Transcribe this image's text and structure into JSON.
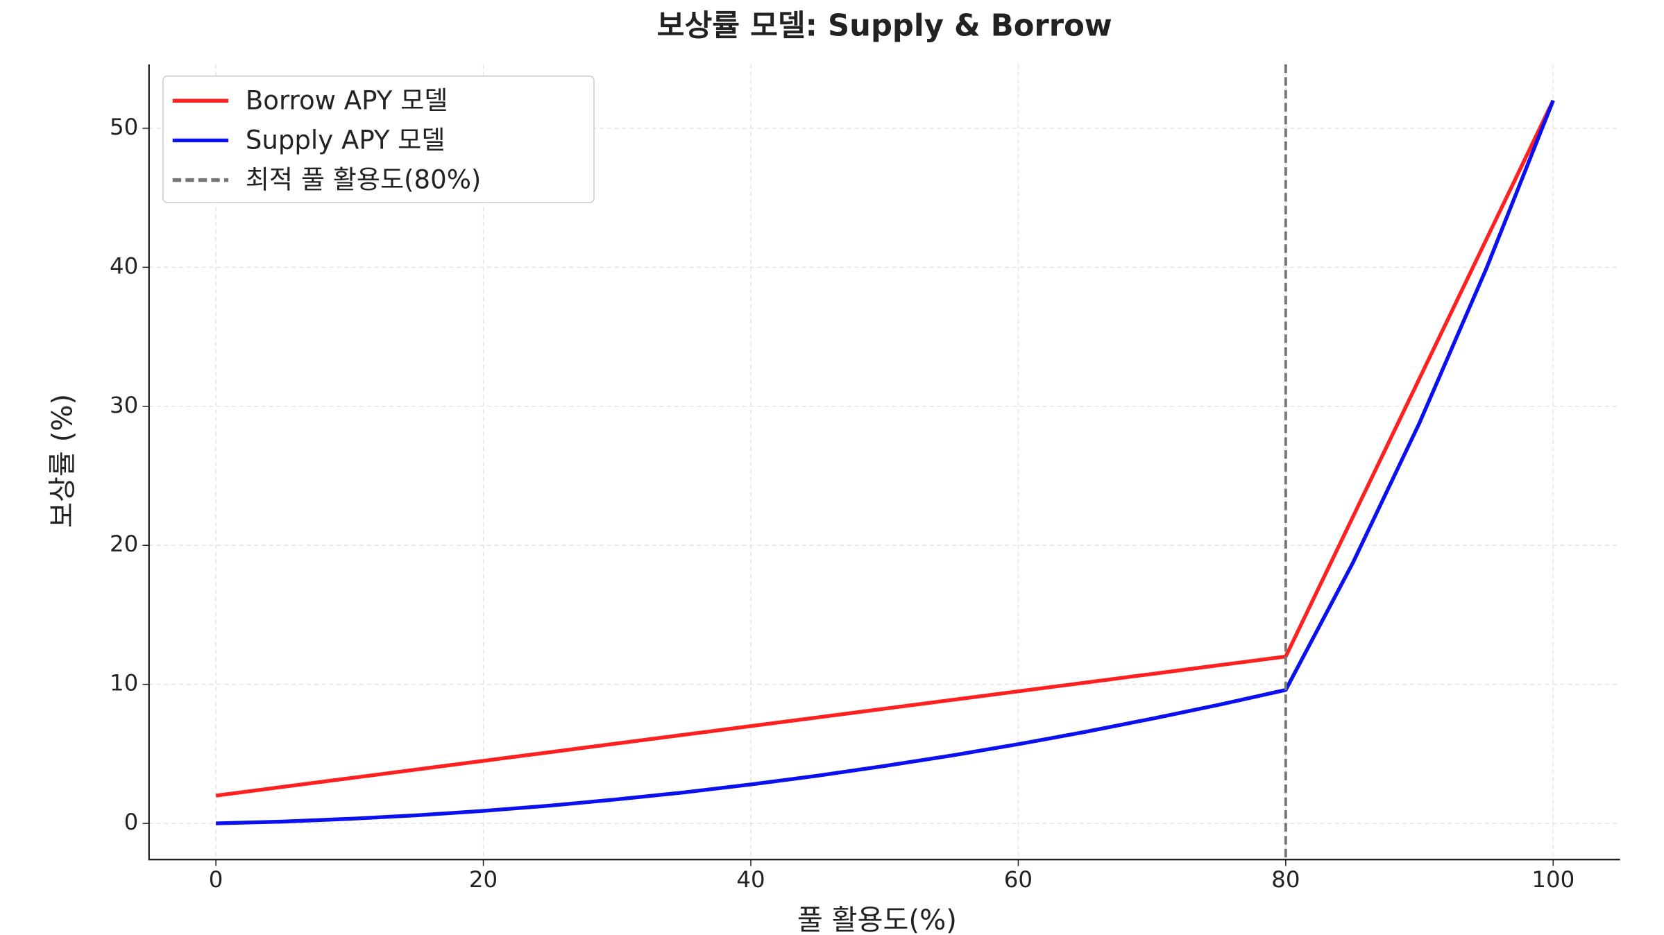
{
  "chart_data": {
    "type": "line",
    "title": "보상률 모델: Supply & Borrow",
    "xlabel": "풀 활용도(%)",
    "ylabel": "보상률 (%)",
    "x": [
      0,
      5,
      10,
      15,
      20,
      25,
      30,
      35,
      40,
      45,
      50,
      55,
      60,
      65,
      70,
      75,
      80,
      85,
      90,
      95,
      100
    ],
    "series": [
      {
        "name": "Borrow APY 모델",
        "color": "#ff2020",
        "values": [
          2,
          2.625,
          3.25,
          3.875,
          4.5,
          5.125,
          5.75,
          6.375,
          7,
          7.625,
          8.25,
          8.875,
          9.5,
          10.125,
          10.75,
          11.375,
          12,
          22,
          32,
          42,
          52
        ]
      },
      {
        "name": "Supply APY 모델",
        "color": "#0a10f0",
        "values": [
          0,
          0.13,
          0.33,
          0.58,
          0.9,
          1.28,
          1.73,
          2.23,
          2.8,
          3.43,
          4.13,
          4.88,
          5.7,
          6.58,
          7.53,
          8.53,
          9.6,
          18.7,
          28.8,
          39.9,
          52
        ]
      }
    ],
    "vlines": [
      {
        "value": 80,
        "name": "최적 풀 활용도(80%)",
        "color": "#777777"
      }
    ],
    "xlim": [
      -5,
      105
    ],
    "ylim": [
      -2.6,
      54.6
    ],
    "xticks": [
      0,
      20,
      40,
      60,
      80,
      100
    ],
    "yticks": [
      0,
      10,
      20,
      30,
      40,
      50
    ],
    "grid": true,
    "legend": "upper left"
  }
}
